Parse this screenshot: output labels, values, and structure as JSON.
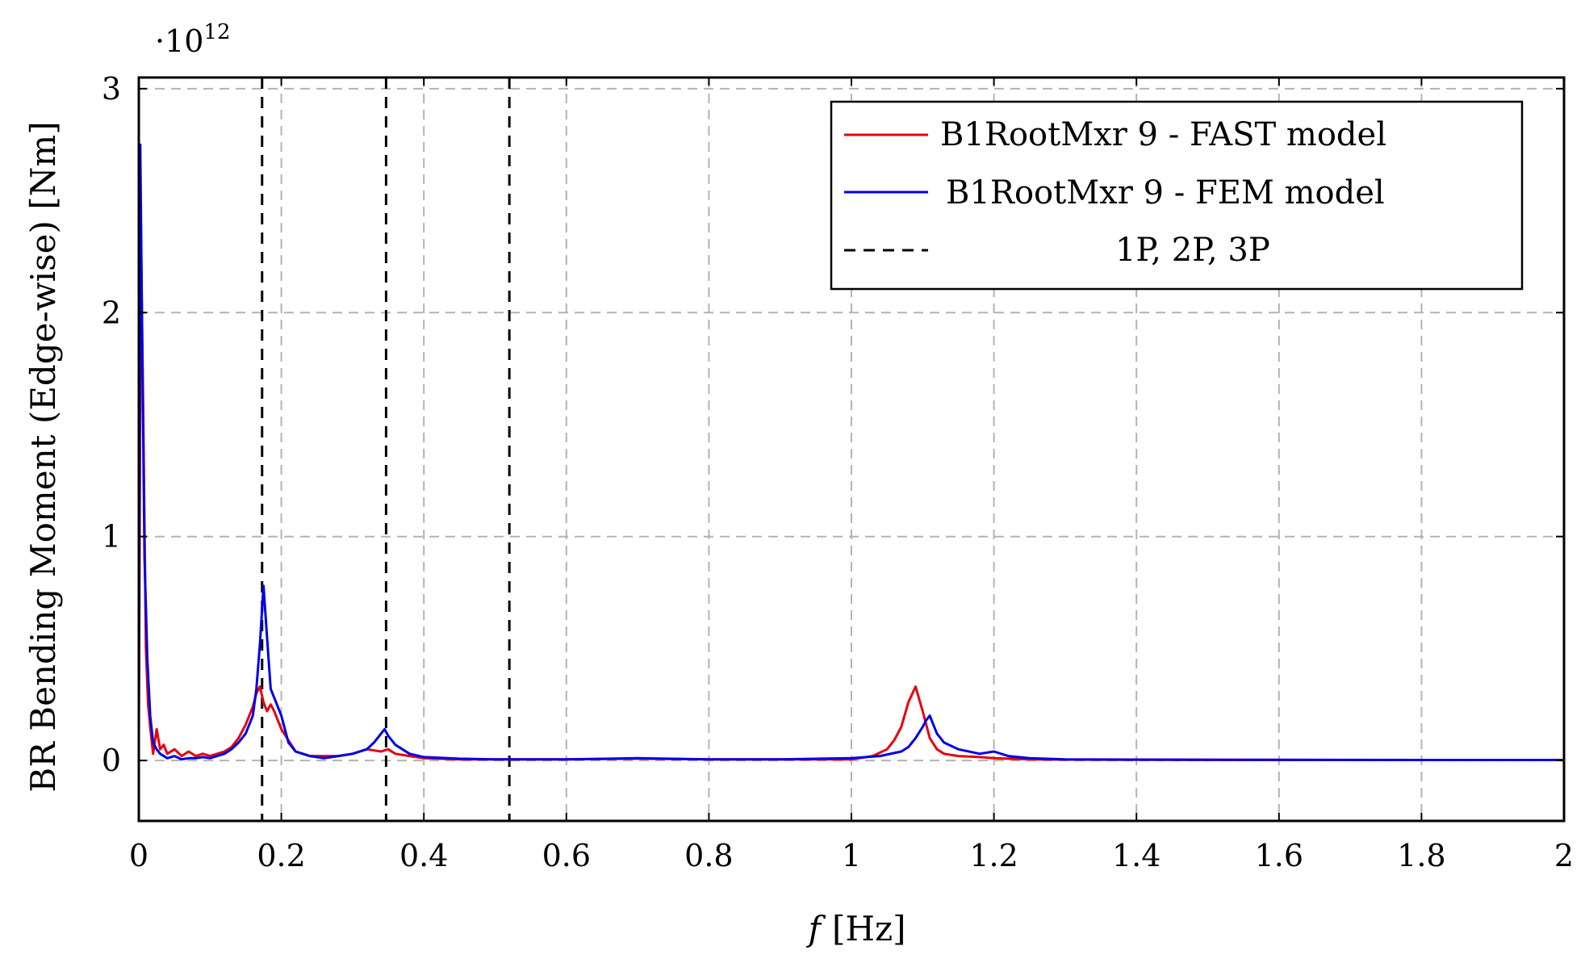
{
  "chart_data": {
    "type": "line",
    "title": "",
    "xlabel_var": "f",
    "xlabel_unit": "[Hz]",
    "ylabel": "BR Bending Moment (Edge-wise) [Nm]",
    "y_multiplier_base": "·10",
    "y_multiplier_exp": "12",
    "xlim": [
      0,
      2
    ],
    "ylim": [
      -0.27,
      3.05
    ],
    "x_ticks": [
      0,
      0.2,
      0.4,
      0.6,
      0.8,
      1,
      1.2,
      1.4,
      1.6,
      1.8,
      2
    ],
    "x_tick_labels": [
      "0",
      "0.2",
      "0.4",
      "0.6",
      "0.8",
      "1",
      "1.2",
      "1.4",
      "1.6",
      "1.8",
      "2"
    ],
    "y_ticks": [
      0,
      1,
      2,
      3
    ],
    "y_tick_labels": [
      "0",
      "1",
      "2",
      "3"
    ],
    "grid": true,
    "legend_position": "top-right",
    "vlines": {
      "name": "1P, 2P, 3P",
      "x": [
        0.173,
        0.347,
        0.52
      ],
      "color": "#000000"
    },
    "series": [
      {
        "name": "B1RootMxr 9 - FAST model",
        "color": "#e8000b",
        "x": [
          0,
          0.003,
          0.006,
          0.01,
          0.013,
          0.016,
          0.02,
          0.025,
          0.03,
          0.035,
          0.04,
          0.05,
          0.06,
          0.07,
          0.08,
          0.09,
          0.1,
          0.11,
          0.12,
          0.13,
          0.14,
          0.15,
          0.16,
          0.165,
          0.17,
          0.175,
          0.18,
          0.185,
          0.19,
          0.2,
          0.21,
          0.22,
          0.24,
          0.26,
          0.28,
          0.3,
          0.32,
          0.34,
          0.35,
          0.36,
          0.38,
          0.4,
          0.45,
          0.5,
          0.6,
          0.7,
          0.8,
          0.9,
          1.0,
          1.03,
          1.05,
          1.06,
          1.07,
          1.08,
          1.09,
          1.1,
          1.11,
          1.12,
          1.13,
          1.15,
          1.18,
          1.2,
          1.22,
          1.25,
          1.3,
          1.4,
          1.6,
          1.8,
          2.0
        ],
        "y": [
          0.1,
          2.35,
          1.6,
          0.5,
          0.25,
          0.15,
          0.03,
          0.14,
          0.05,
          0.07,
          0.03,
          0.05,
          0.02,
          0.04,
          0.02,
          0.03,
          0.02,
          0.03,
          0.04,
          0.06,
          0.1,
          0.16,
          0.24,
          0.3,
          0.33,
          0.26,
          0.22,
          0.25,
          0.22,
          0.14,
          0.09,
          0.04,
          0.02,
          0.02,
          0.02,
          0.03,
          0.05,
          0.04,
          0.05,
          0.03,
          0.02,
          0.01,
          0.005,
          0.005,
          0.005,
          0.008,
          0.005,
          0.005,
          0.005,
          0.02,
          0.05,
          0.09,
          0.15,
          0.26,
          0.33,
          0.22,
          0.1,
          0.05,
          0.03,
          0.02,
          0.015,
          0.01,
          0.008,
          0.005,
          0.004,
          0.003,
          0.002,
          0.002,
          0.002
        ]
      },
      {
        "name": "B1RootMxr 9 - FEM model",
        "color": "#0000e8",
        "x": [
          0,
          0.002,
          0.005,
          0.008,
          0.012,
          0.016,
          0.02,
          0.025,
          0.03,
          0.04,
          0.05,
          0.06,
          0.07,
          0.08,
          0.09,
          0.1,
          0.11,
          0.12,
          0.13,
          0.14,
          0.15,
          0.16,
          0.165,
          0.17,
          0.175,
          0.18,
          0.185,
          0.19,
          0.2,
          0.21,
          0.22,
          0.24,
          0.26,
          0.28,
          0.3,
          0.32,
          0.33,
          0.34,
          0.345,
          0.35,
          0.36,
          0.38,
          0.4,
          0.45,
          0.5,
          0.6,
          0.7,
          0.8,
          0.9,
          1.0,
          1.04,
          1.07,
          1.08,
          1.09,
          1.1,
          1.105,
          1.11,
          1.115,
          1.12,
          1.13,
          1.15,
          1.18,
          1.2,
          1.22,
          1.25,
          1.3,
          1.4,
          1.6,
          1.8,
          2.0
        ],
        "y": [
          0.2,
          2.75,
          1.8,
          0.9,
          0.45,
          0.2,
          0.08,
          0.05,
          0.03,
          0.01,
          0.02,
          0.005,
          0.01,
          0.01,
          0.015,
          0.01,
          0.02,
          0.03,
          0.05,
          0.08,
          0.12,
          0.2,
          0.32,
          0.52,
          0.78,
          0.55,
          0.32,
          0.28,
          0.2,
          0.08,
          0.04,
          0.02,
          0.01,
          0.02,
          0.03,
          0.05,
          0.08,
          0.12,
          0.14,
          0.11,
          0.07,
          0.03,
          0.015,
          0.008,
          0.005,
          0.005,
          0.01,
          0.005,
          0.005,
          0.01,
          0.02,
          0.04,
          0.06,
          0.1,
          0.15,
          0.18,
          0.2,
          0.16,
          0.12,
          0.08,
          0.05,
          0.03,
          0.04,
          0.02,
          0.01,
          0.005,
          0.004,
          0.003,
          0.002,
          0.002
        ]
      }
    ]
  }
}
